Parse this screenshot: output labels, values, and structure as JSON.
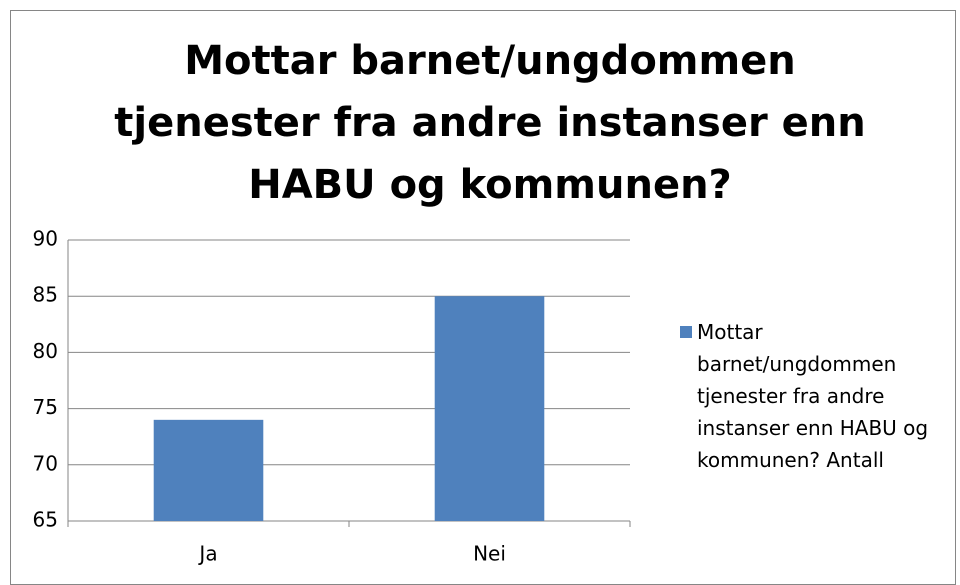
{
  "chart_data": {
    "type": "bar",
    "title": "Mottar barnet/ungdommen tjenester fra andre instanser enn HABU og kommunen?",
    "categories": [
      "Ja",
      "Nei"
    ],
    "series": [
      {
        "name": "Mottar barnet/ungdommen tjenester fra andre instanser enn HABU og kommunen? Antall",
        "color": "#4f81bd",
        "values": [
          74,
          85
        ]
      }
    ],
    "ylim": [
      65,
      90
    ],
    "yticks": [
      65,
      70,
      75,
      80,
      85,
      90
    ],
    "grid": true,
    "legend": "right"
  }
}
